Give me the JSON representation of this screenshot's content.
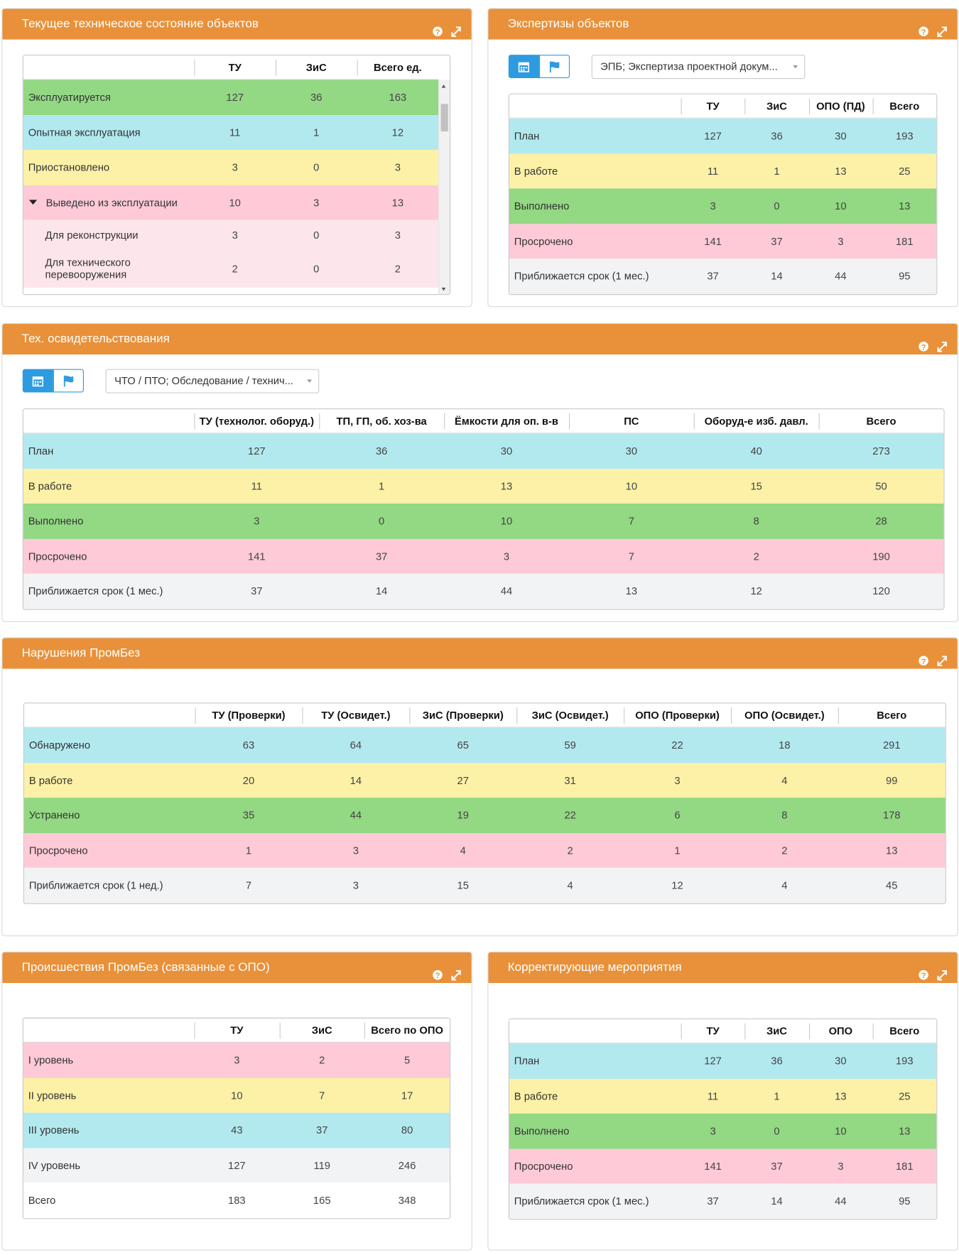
{
  "panels": [
    {
      "title": "Текущее техническое состояние объектов",
      "table": {
        "columns": [
          "ТУ",
          "ЗиС",
          "Всего ед."
        ],
        "rows": [
          {
            "label": "Эксплуатируется",
            "color": "#93d883",
            "values": [
              127,
              36,
              163
            ]
          },
          {
            "label": "Опытная эксплуатация",
            "color": "#b2e9ef",
            "values": [
              11,
              1,
              12
            ]
          },
          {
            "label": "Приостановлено",
            "color": "#fcf1a6",
            "values": [
              3,
              0,
              3
            ]
          },
          {
            "label": "Выведено из эксплуатации",
            "color": "#fecad8",
            "values": [
              10,
              3,
              13
            ],
            "children": [
              {
                "label": "Для реконструкции",
                "color": "#fde6eb",
                "values": [
                  3,
                  0,
                  3
                ]
              },
              {
                "label": "Для технического перевооружения",
                "color": "#fde6eb",
                "values": [
                  2,
                  0,
                  2
                ]
              }
            ]
          }
        ]
      }
    },
    {
      "title": "Экспертизы объектов",
      "dropdown": "ЭПБ; Экспертиза проектной докум...",
      "table": {
        "columns": [
          "ТУ",
          "ЗиС",
          "ОПО (ПД)",
          "Всего"
        ],
        "rows": [
          {
            "label": "План",
            "color": "#b2e9ef",
            "values": [
              127,
              36,
              30,
              193
            ]
          },
          {
            "label": "В работе",
            "color": "#fcf1a6",
            "values": [
              11,
              1,
              13,
              25
            ]
          },
          {
            "label": "Выполнено",
            "color": "#93d883",
            "values": [
              3,
              0,
              10,
              13
            ]
          },
          {
            "label": "Просрочено",
            "color": "#fecad8",
            "values": [
              141,
              37,
              3,
              181
            ]
          },
          {
            "label": "Приближается срок (1 мес.)",
            "color": "#f2f3f5",
            "values": [
              37,
              14,
              44,
              95
            ]
          }
        ]
      }
    },
    {
      "title": "Тех. освидетельствования",
      "dropdown": "ЧТО / ПТО; Обследование / технич...",
      "table": {
        "columns": [
          "ТУ (технолог. оборуд.)",
          "ТП, ГП, об. хоз-ва",
          "Ёмкости для оп. в-в",
          "ПС",
          "Оборуд-е изб. давл.",
          "Всего"
        ],
        "rows": [
          {
            "label": "План",
            "color": "#b2e9ef",
            "values": [
              127,
              36,
              30,
              30,
              40,
              273
            ]
          },
          {
            "label": "В работе",
            "color": "#fcf1a6",
            "values": [
              11,
              1,
              13,
              10,
              15,
              50
            ]
          },
          {
            "label": "Выполнено",
            "color": "#93d883",
            "values": [
              3,
              0,
              10,
              7,
              8,
              28
            ]
          },
          {
            "label": "Просрочено",
            "color": "#fecad8",
            "values": [
              141,
              37,
              3,
              7,
              2,
              190
            ]
          },
          {
            "label": "Приближается срок (1 мес.)",
            "color": "#f2f3f5",
            "values": [
              37,
              14,
              44,
              13,
              12,
              120
            ]
          }
        ]
      }
    },
    {
      "title": "Нарушения ПромБез",
      "table": {
        "columns": [
          "ТУ (Проверки)",
          "ТУ (Освидет.)",
          "ЗиС (Проверки)",
          "ЗиС (Освидет.)",
          "ОПО (Проверки)",
          "ОПО (Освидет.)",
          "Всего"
        ],
        "rows": [
          {
            "label": "Обнаружено",
            "color": "#b2e9ef",
            "values": [
              63,
              64,
              65,
              59,
              22,
              18,
              291
            ]
          },
          {
            "label": "В работе",
            "color": "#fcf1a6",
            "values": [
              20,
              14,
              27,
              31,
              3,
              4,
              99
            ]
          },
          {
            "label": "Устранено",
            "color": "#93d883",
            "values": [
              35,
              44,
              19,
              22,
              6,
              8,
              178
            ]
          },
          {
            "label": "Просрочено",
            "color": "#fecad8",
            "values": [
              1,
              3,
              4,
              2,
              1,
              2,
              13
            ]
          },
          {
            "label": "Приближается срок (1 нед.)",
            "color": "#f2f3f5",
            "values": [
              7,
              3,
              15,
              4,
              12,
              4,
              45
            ]
          }
        ]
      }
    },
    {
      "title": "Происшествия ПромБез (связанные с ОПО)",
      "table": {
        "columns": [
          "ТУ",
          "ЗиС",
          "Всего по ОПО"
        ],
        "rows": [
          {
            "label": "I уровень",
            "color": "#fecad8",
            "values": [
              3,
              2,
              5
            ]
          },
          {
            "label": "II уровень",
            "color": "#fcf1a6",
            "values": [
              10,
              7,
              17
            ]
          },
          {
            "label": "III уровень",
            "color": "#b2e9ef",
            "values": [
              43,
              37,
              80
            ]
          },
          {
            "label": "IV уровень",
            "color": "#f2f3f5",
            "values": [
              127,
              119,
              246
            ]
          },
          {
            "label": "Всего",
            "color": "#ffffff",
            "values": [
              183,
              165,
              348
            ]
          }
        ]
      }
    },
    {
      "title": "Корректирующие мероприятия",
      "table": {
        "columns": [
          "ТУ",
          "ЗиС",
          "ОПО",
          "Всего"
        ],
        "rows": [
          {
            "label": "План",
            "color": "#b2e9ef",
            "values": [
              127,
              36,
              30,
              193
            ]
          },
          {
            "label": "В работе",
            "color": "#fcf1a6",
            "values": [
              11,
              1,
              13,
              25
            ]
          },
          {
            "label": "Выполнено",
            "color": "#93d883",
            "values": [
              3,
              0,
              10,
              13
            ]
          },
          {
            "label": "Просрочено",
            "color": "#fecad8",
            "values": [
              141,
              37,
              3,
              181
            ]
          },
          {
            "label": "Приближается срок (1 мес.)",
            "color": "#f2f3f5",
            "values": [
              37,
              14,
              44,
              95
            ]
          }
        ]
      }
    }
  ]
}
